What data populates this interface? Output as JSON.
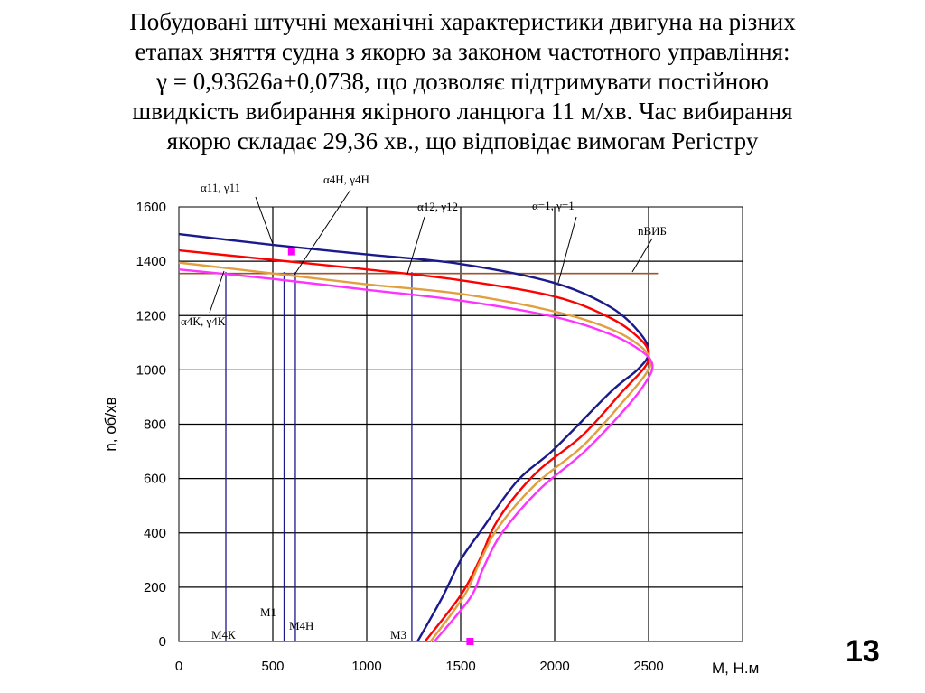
{
  "heading": {
    "lines": [
      "Побудовані штучні механічні характеристики двигуна на різних",
      "етапах зняття судна з якорю за законом частотного управління:",
      "γ = 0,93626а+0,0738, що дозволяє підтримувати постійною",
      "швидкість вибирання якірного ланцюга 11 м/хв.  Час вибирання",
      "якорю складає 29,36  хв., що відповідає вимогам Регістру"
    ]
  },
  "slide_number": "13",
  "chart_data": {
    "type": "line",
    "xlabel": "M, Н.м",
    "ylabel": "n, об/хв",
    "xlim": [
      0,
      3000
    ],
    "ylim": [
      0,
      1600
    ],
    "x_ticks": [
      "0",
      "500",
      "1000",
      "1500",
      "2000",
      "2500"
    ],
    "y_ticks": [
      "0",
      "200",
      "400",
      "600",
      "800",
      "1000",
      "1200",
      "1400",
      "1600"
    ],
    "grid": true,
    "series": [
      {
        "color": "#1a1a8c",
        "points": [
          [
            0,
            1500
          ],
          [
            500,
            1460
          ],
          [
            1000,
            1425
          ],
          [
            1500,
            1390
          ],
          [
            2000,
            1320
          ],
          [
            2300,
            1230
          ],
          [
            2460,
            1130
          ],
          [
            2500,
            1060
          ],
          [
            2440,
            1000
          ],
          [
            2300,
            920
          ],
          [
            2000,
            710
          ],
          [
            1800,
            590
          ],
          [
            1600,
            400
          ],
          [
            1500,
            300
          ],
          [
            1400,
            160
          ],
          [
            1270,
            0
          ]
        ]
      },
      {
        "color": "#ff0000",
        "points": [
          [
            0,
            1440
          ],
          [
            500,
            1405
          ],
          [
            1000,
            1370
          ],
          [
            1500,
            1330
          ],
          [
            2000,
            1270
          ],
          [
            2300,
            1190
          ],
          [
            2460,
            1110
          ],
          [
            2500,
            1060
          ],
          [
            2480,
            1010
          ],
          [
            2360,
            920
          ],
          [
            2150,
            760
          ],
          [
            1900,
            620
          ],
          [
            1700,
            450
          ],
          [
            1600,
            300
          ],
          [
            1500,
            170
          ],
          [
            1310,
            0
          ]
        ]
      },
      {
        "color": "#e0a040",
        "points": [
          [
            0,
            1395
          ],
          [
            500,
            1355
          ],
          [
            1000,
            1315
          ],
          [
            1500,
            1280
          ],
          [
            2000,
            1215
          ],
          [
            2300,
            1150
          ],
          [
            2460,
            1085
          ],
          [
            2510,
            1030
          ],
          [
            2480,
            980
          ],
          [
            2360,
            880
          ],
          [
            2150,
            720
          ],
          [
            1900,
            580
          ],
          [
            1700,
            420
          ],
          [
            1600,
            290
          ],
          [
            1520,
            170
          ],
          [
            1340,
            0
          ]
        ]
      },
      {
        "color": "#ff33ff",
        "points": [
          [
            0,
            1370
          ],
          [
            500,
            1335
          ],
          [
            1000,
            1295
          ],
          [
            1500,
            1255
          ],
          [
            2000,
            1195
          ],
          [
            2300,
            1130
          ],
          [
            2460,
            1070
          ],
          [
            2520,
            1020
          ],
          [
            2490,
            960
          ],
          [
            2380,
            860
          ],
          [
            2160,
            700
          ],
          [
            1920,
            560
          ],
          [
            1720,
            400
          ],
          [
            1620,
            270
          ],
          [
            1550,
            160
          ],
          [
            1360,
            0
          ]
        ]
      }
    ],
    "reference_line": {
      "label": "nВИБ",
      "y": 1355,
      "x_range": [
        0,
        2550
      ],
      "color": "#a0522d"
    },
    "vertical_lines": [
      {
        "label": "M4К",
        "x": 250
      },
      {
        "label": "M1",
        "x": 560
      },
      {
        "label": "M4Н",
        "x": 620
      },
      {
        "label": "M3",
        "x": 1240
      }
    ],
    "annotations": [
      {
        "text": "α11, γ11"
      },
      {
        "text": "α4Н, γ4Н"
      },
      {
        "text": "α12, γ12"
      },
      {
        "text": "α=1, γ=1"
      },
      {
        "text": "α4К, γ4К"
      }
    ],
    "markers": [
      {
        "x": 600,
        "y": 1435,
        "color": "#ff00ff"
      },
      {
        "x": 1550,
        "y": 0,
        "color": "#ff00ff"
      }
    ]
  }
}
